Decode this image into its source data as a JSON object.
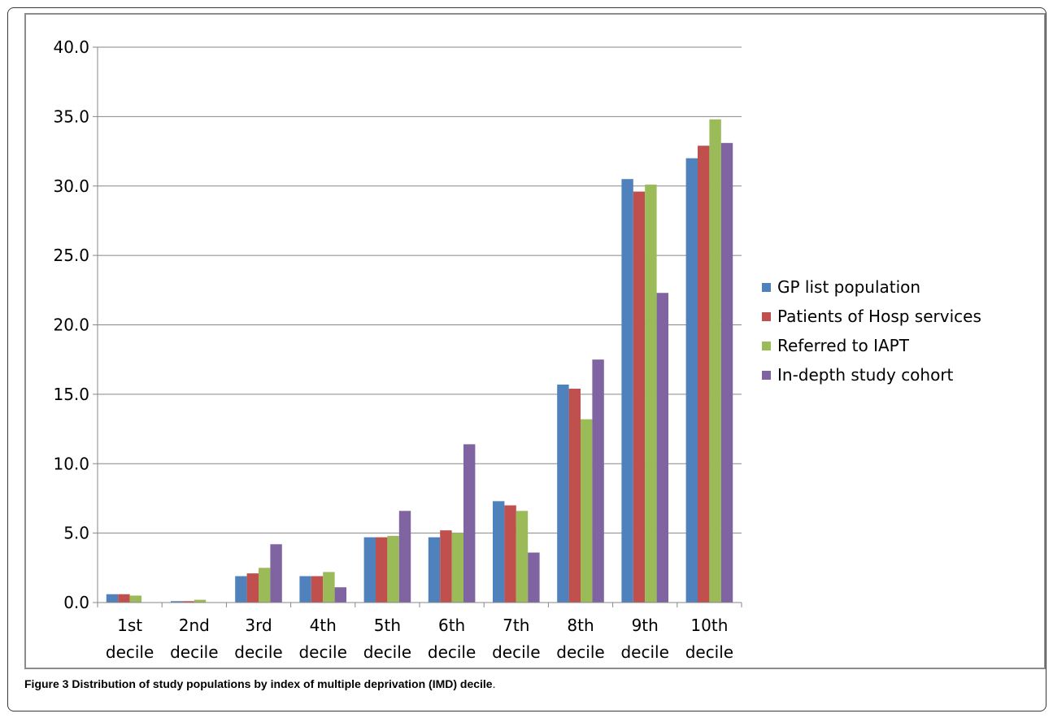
{
  "caption": {
    "label": "Figure 3",
    "text": "Distribution of study populations by index of multiple deprivation (IMD) decile",
    "end": "."
  },
  "chart_data": {
    "type": "bar",
    "title": "",
    "xlabel": "",
    "ylabel": "",
    "ylim": [
      0,
      40
    ],
    "yticks": [
      "0.0",
      "5.0",
      "10.0",
      "15.0",
      "20.0",
      "25.0",
      "30.0",
      "35.0",
      "40.0"
    ],
    "grid": true,
    "legend_position": "right",
    "categories": [
      [
        "1st",
        "decile"
      ],
      [
        "2nd",
        "decile"
      ],
      [
        "3rd",
        "decile"
      ],
      [
        "4th",
        "decile"
      ],
      [
        "5th",
        "decile"
      ],
      [
        "6th",
        "decile"
      ],
      [
        "7th",
        "decile"
      ],
      [
        "8th",
        "decile"
      ],
      [
        "9th",
        "decile"
      ],
      [
        "10th",
        "decile"
      ]
    ],
    "series": [
      {
        "name": "GP list population",
        "color": "#4F81BD",
        "values": [
          0.6,
          0.1,
          1.9,
          1.9,
          4.7,
          4.7,
          7.3,
          15.7,
          30.5,
          32.0
        ]
      },
      {
        "name": "Patients of Hosp services",
        "color": "#C0504D",
        "values": [
          0.6,
          0.1,
          2.1,
          1.9,
          4.7,
          5.2,
          7.0,
          15.4,
          29.6,
          32.9
        ]
      },
      {
        "name": "Referred to IAPT",
        "color": "#9BBB59",
        "values": [
          0.5,
          0.2,
          2.5,
          2.2,
          4.8,
          5.0,
          6.6,
          13.2,
          30.1,
          34.8
        ]
      },
      {
        "name": "In-depth study cohort",
        "color": "#8064A2",
        "values": [
          0.0,
          0.0,
          4.2,
          1.1,
          6.6,
          11.4,
          3.6,
          17.5,
          22.3,
          33.1
        ]
      }
    ]
  }
}
